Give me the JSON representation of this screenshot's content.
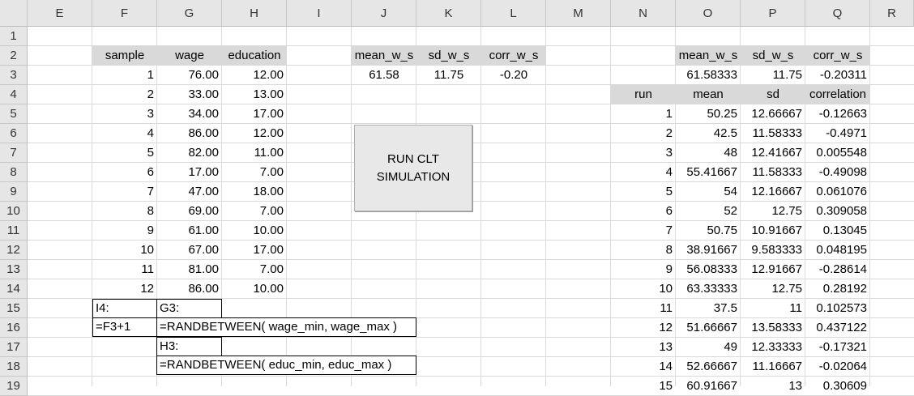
{
  "columns": [
    "E",
    "F",
    "G",
    "H",
    "I",
    "J",
    "K",
    "L",
    "M",
    "N",
    "O",
    "P",
    "Q",
    "R"
  ],
  "rows": [
    "1",
    "2",
    "3",
    "4",
    "5",
    "6",
    "7",
    "8",
    "9",
    "10",
    "11",
    "12",
    "13",
    "14",
    "15",
    "16",
    "17",
    "18",
    "19"
  ],
  "sample_table": {
    "headers": {
      "sample": "sample",
      "wage": "wage",
      "education": "education"
    },
    "rows": [
      {
        "sample": "1",
        "wage": "76.00",
        "education": "12.00"
      },
      {
        "sample": "2",
        "wage": "33.00",
        "education": "13.00"
      },
      {
        "sample": "3",
        "wage": "34.00",
        "education": "17.00"
      },
      {
        "sample": "4",
        "wage": "86.00",
        "education": "12.00"
      },
      {
        "sample": "5",
        "wage": "82.00",
        "education": "11.00"
      },
      {
        "sample": "6",
        "wage": "17.00",
        "education": "7.00"
      },
      {
        "sample": "7",
        "wage": "47.00",
        "education": "18.00"
      },
      {
        "sample": "8",
        "wage": "69.00",
        "education": "7.00"
      },
      {
        "sample": "9",
        "wage": "61.00",
        "education": "10.00"
      },
      {
        "sample": "10",
        "wage": "67.00",
        "education": "17.00"
      },
      {
        "sample": "11",
        "wage": "81.00",
        "education": "7.00"
      },
      {
        "sample": "12",
        "wage": "86.00",
        "education": "10.00"
      }
    ]
  },
  "stats_mid": {
    "headers": [
      "mean_w_s",
      "sd_w_s",
      "corr_w_s"
    ],
    "values": [
      "61.58",
      "11.75",
      "-0.20"
    ]
  },
  "run_button": {
    "line1": "RUN CLT",
    "line2": "SIMULATION"
  },
  "formula_notes": {
    "i4_label": "I4:",
    "i4_formula": "=F3+1",
    "g3_label": "G3:",
    "g3_formula": "=RANDBETWEEN( wage_min, wage_max )",
    "h3_label": "H3:",
    "h3_formula": "=RANDBETWEEN( educ_min, educ_max )"
  },
  "stats_right": {
    "headers": [
      "mean_w_s",
      "sd_w_s",
      "corr_w_s"
    ],
    "values": [
      "61.58333",
      "11.75",
      "-0.20311"
    ]
  },
  "runs_table": {
    "headers": {
      "run": "run",
      "mean": "mean",
      "sd": "sd",
      "correlation": "correlation"
    },
    "rows": [
      {
        "run": "1",
        "mean": "50.25",
        "sd": "12.66667",
        "corr": "-0.12663"
      },
      {
        "run": "2",
        "mean": "42.5",
        "sd": "11.58333",
        "corr": "-0.4971"
      },
      {
        "run": "3",
        "mean": "48",
        "sd": "12.41667",
        "corr": "0.005548"
      },
      {
        "run": "4",
        "mean": "55.41667",
        "sd": "11.58333",
        "corr": "-0.49098"
      },
      {
        "run": "5",
        "mean": "54",
        "sd": "12.16667",
        "corr": "0.061076"
      },
      {
        "run": "6",
        "mean": "52",
        "sd": "12.75",
        "corr": "0.309058"
      },
      {
        "run": "7",
        "mean": "50.75",
        "sd": "10.91667",
        "corr": "0.13045"
      },
      {
        "run": "8",
        "mean": "38.91667",
        "sd": "9.583333",
        "corr": "0.048195"
      },
      {
        "run": "9",
        "mean": "56.08333",
        "sd": "12.91667",
        "corr": "-0.28614"
      },
      {
        "run": "10",
        "mean": "63.33333",
        "sd": "12.75",
        "corr": "0.28192"
      },
      {
        "run": "11",
        "mean": "37.5",
        "sd": "11",
        "corr": "0.102573"
      },
      {
        "run": "12",
        "mean": "51.66667",
        "sd": "13.58333",
        "corr": "0.437122"
      },
      {
        "run": "13",
        "mean": "49",
        "sd": "12.33333",
        "corr": "-0.17321"
      },
      {
        "run": "14",
        "mean": "52.66667",
        "sd": "11.16667",
        "corr": "-0.02064"
      },
      {
        "run": "15",
        "mean": "60.91667",
        "sd": "13",
        "corr": "0.30609"
      }
    ]
  },
  "colors": {
    "header_fill": "#d9d9d9",
    "grid": "#d9d9d9",
    "button": "#e8e8e8"
  }
}
